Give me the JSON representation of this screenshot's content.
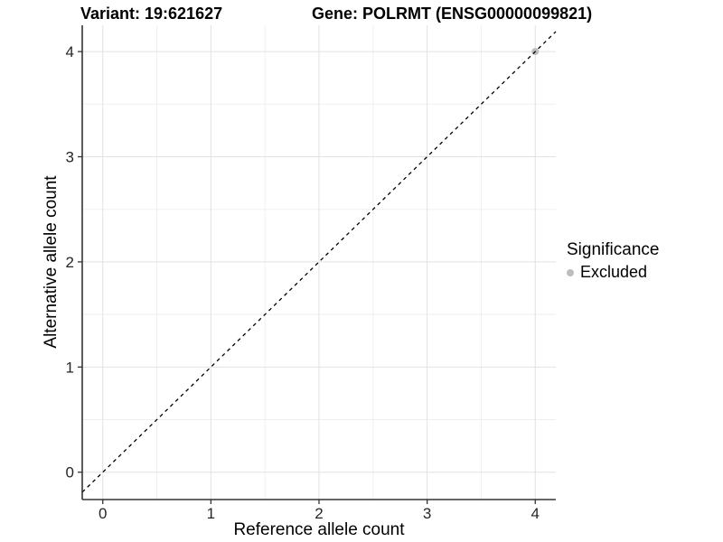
{
  "chart_data": {
    "type": "scatter",
    "title_left": "Variant: 19:621627",
    "title_right": "Gene: POLRMT (ENSG00000099821)",
    "xlabel": "Reference allele count",
    "ylabel": "Alternative allele count",
    "xlim": [
      -0.19,
      4.19
    ],
    "ylim": [
      -0.26,
      4.25
    ],
    "xticks": [
      0,
      1,
      2,
      3,
      4
    ],
    "yticks": [
      0,
      1,
      2,
      3,
      4
    ],
    "xminor": [
      0.5,
      1.5,
      2.5,
      3.5
    ],
    "yminor": [
      0.5,
      1.5,
      2.5,
      3.5
    ],
    "grid": "on",
    "legend_position": "right",
    "legend": {
      "title": "Significance",
      "items": [
        {
          "label": "Excluded",
          "color": "#bdbdbd"
        }
      ]
    },
    "series": [
      {
        "name": "Excluded",
        "color": "#bdbdbd",
        "points": [
          {
            "x": 4,
            "y": 4
          }
        ]
      }
    ],
    "identity_line": {
      "slope": 1,
      "intercept": 0,
      "style": "dashed",
      "color": "#000000"
    },
    "colors": {
      "grid_major": "#e2e2e2",
      "grid_minor": "#efefef",
      "axis_line": "#333333",
      "tick_label": "#262626",
      "point_excluded": "#bdbdbd"
    }
  }
}
